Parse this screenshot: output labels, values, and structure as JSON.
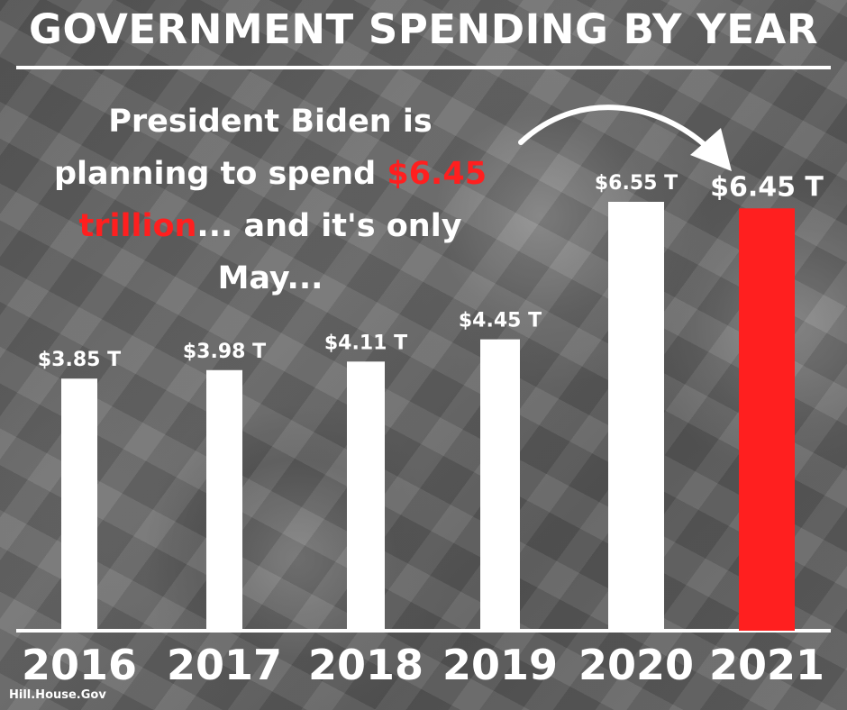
{
  "chart_data": {
    "type": "bar",
    "title": "GOVERNMENT SPENDING BY YEAR",
    "categories": [
      "2016",
      "2017",
      "2018",
      "2019",
      "2020",
      "2021"
    ],
    "values": [
      3.85,
      3.98,
      4.11,
      4.45,
      6.55,
      6.45
    ],
    "value_labels": [
      "$3.85 T",
      "$3.98 T",
      "$4.11 T",
      "$4.45 T",
      "$6.55 T",
      "$6.45 T"
    ],
    "unit": "trillion USD",
    "highlight_category": "2021",
    "colors": {
      "bar": "#ffffff",
      "highlight": "#ff1f1f",
      "text": "#ffffff"
    },
    "xlabel": "",
    "ylabel": "",
    "ylim": [
      0,
      6.55
    ],
    "grid": false,
    "annotation": {
      "before": "President Biden is planning to spend ",
      "highlight": "$6.45 trillion",
      "after": "... and it's only May..."
    }
  },
  "footer": {
    "source": "Hill.House.Gov"
  }
}
